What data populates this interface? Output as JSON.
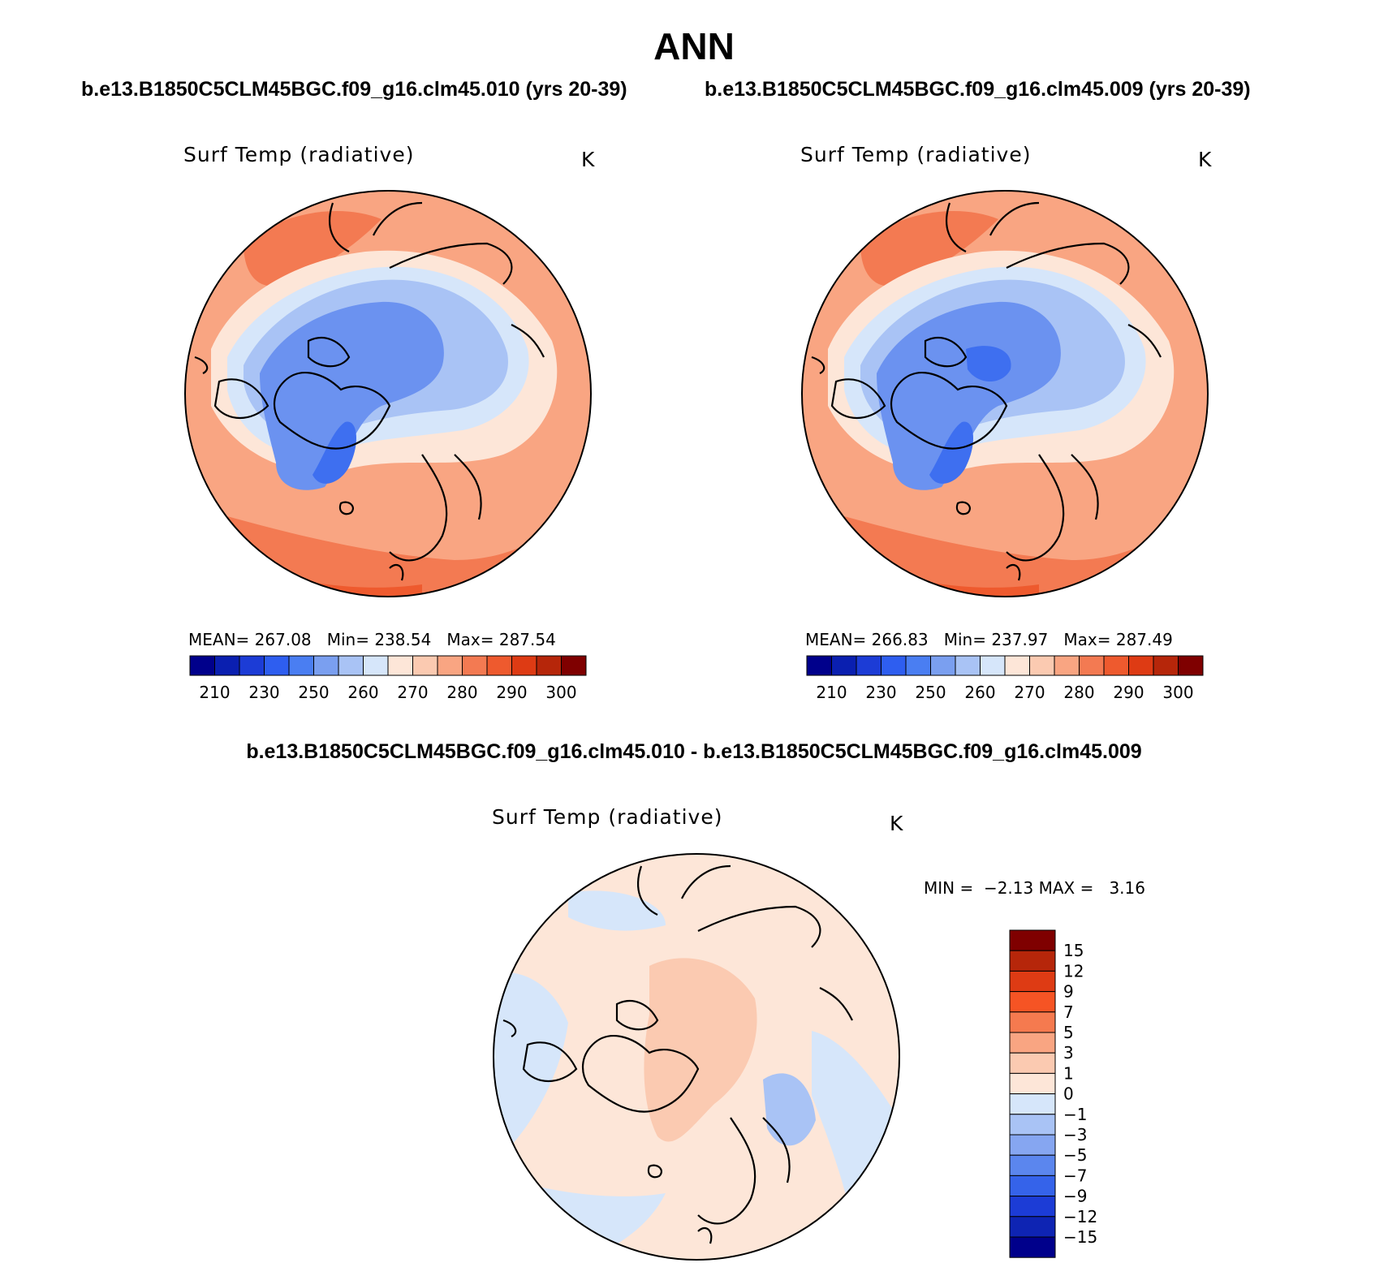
{
  "title": "ANN",
  "cases": {
    "left": "b.e13.B1850C5CLM45BGC.f09_g16.clm45.010 (yrs 20-39)",
    "right": "b.e13.B1850C5CLM45BGC.f09_g16.clm45.009 (yrs 20-39)"
  },
  "diff_title": "b.e13.B1850C5CLM45BGC.f09_g16.clm45.010 - b.e13.B1850C5CLM45BGC.f09_g16.clm45.009",
  "panels": {
    "left": {
      "variable": "Surf Temp (radiative)",
      "units": "K",
      "mean_label": "MEAN=",
      "mean": "267.08",
      "min_label": "Min=",
      "min": "238.54",
      "max_label": "Max=",
      "max": "287.54"
    },
    "right": {
      "variable": "Surf Temp (radiative)",
      "units": "K",
      "mean_label": "MEAN=",
      "mean": "266.83",
      "min_label": "Min=",
      "min": "237.97",
      "max_label": "Max=",
      "max": "287.49"
    },
    "diff": {
      "variable": "Surf Temp (radiative)",
      "units": "K",
      "min_label": "MIN =",
      "min": "−2.13",
      "max_label": "MAX =",
      "max": "3.16"
    }
  },
  "abs_colorbar": {
    "colors": [
      "#00008b",
      "#0a1fb0",
      "#1c3cd6",
      "#2e5ef0",
      "#4a7ef2",
      "#7a9ff0",
      "#a9c3f5",
      "#d6e6fa",
      "#fde6d8",
      "#fbcab1",
      "#f9a582",
      "#f37a52",
      "#ee5a2e",
      "#de3b14",
      "#b6260a",
      "#7f0000"
    ],
    "labels": [
      "210",
      "230",
      "250",
      "260",
      "270",
      "280",
      "290",
      "300"
    ]
  },
  "diff_colorbar": {
    "colors": [
      "#7f0000",
      "#b6260a",
      "#de3b14",
      "#f65424",
      "#f57a4f",
      "#f9a582",
      "#fbcab1",
      "#fde6d8",
      "#d6e6fa",
      "#a9c3f5",
      "#86a6f1",
      "#5b86ee",
      "#3563ea",
      "#1c3cd6",
      "#0e24b3",
      "#00008b"
    ],
    "labels": [
      "15",
      "12",
      "9",
      "7",
      "5",
      "3",
      "1",
      "0",
      "−1",
      "−3",
      "−5",
      "−7",
      "−9",
      "−12",
      "−15"
    ]
  },
  "field_colors": {
    "deep_cold": "#3e6ff0",
    "cold": "#6b92f0",
    "cool": "#a9c3f5",
    "cool_light": "#d6e6fa",
    "mild": "#fde6d8",
    "warm_light": "#fbcab1",
    "warm": "#f9a582",
    "hot": "#f37a52",
    "hotter": "#ee5a2e",
    "diff_pos": "#fbcab1",
    "diff_zero": "#fde6d8",
    "diff_neg": "#d6e6fa",
    "diff_neg2": "#a9c3f5"
  }
}
